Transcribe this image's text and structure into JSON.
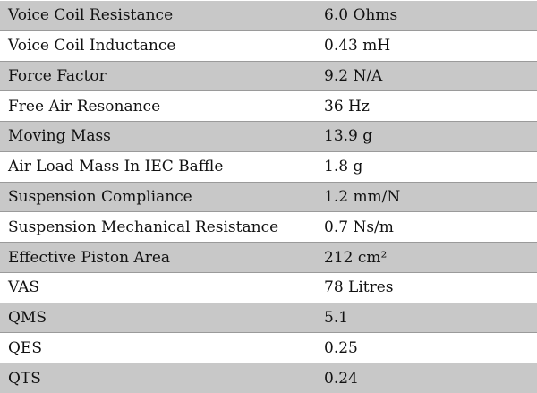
{
  "specs": [
    {
      "name": "Voice Coil Resistance",
      "value": "6.0 Ohms"
    },
    {
      "name": "Voice Coil Inductance",
      "value": "0.43 mH"
    },
    {
      "name": "Force Factor",
      "value": "9.2 N/A"
    },
    {
      "name": "Free Air Resonance",
      "value": "36 Hz"
    },
    {
      "name": "Moving Mass",
      "value": "13.9 g"
    },
    {
      "name": "Air Load Mass In IEC Baffle",
      "value": "1.8 g"
    },
    {
      "name": "Suspension Compliance",
      "value": "1.2 mm/N"
    },
    {
      "name": "Suspension Mechanical Resistance",
      "value": "0.7 Ns/m"
    },
    {
      "name": "Effective Piston Area",
      "value": "212 cm²"
    },
    {
      "name": "VAS",
      "value": "78 Litres"
    },
    {
      "name": "QMS",
      "value": "5.1"
    },
    {
      "name": "QES",
      "value": "0.25"
    },
    {
      "name": "QTS",
      "value": "0.24"
    }
  ],
  "colors": {
    "shaded_row": "#c8c8c8",
    "plain_row": "#ffffff",
    "text": "#111111",
    "divider": "#9a9a9a"
  }
}
